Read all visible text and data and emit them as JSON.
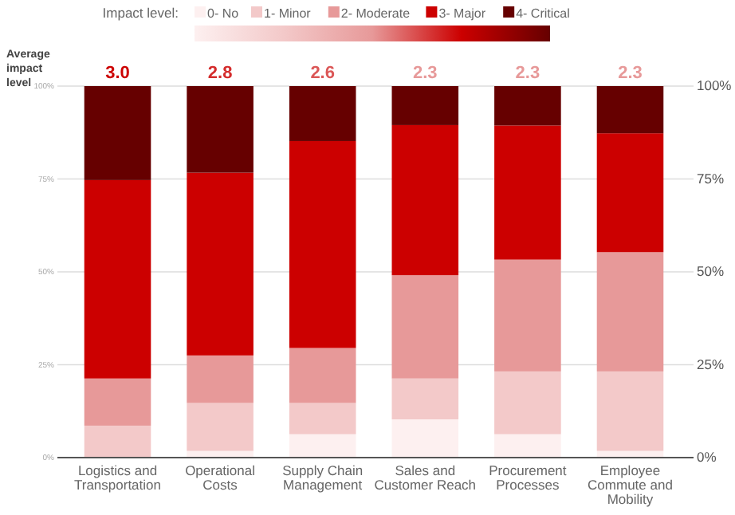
{
  "chart_data": {
    "type": "bar",
    "stacked": true,
    "legend": "top",
    "legend_title": "Impact level:",
    "grid": "y",
    "categories": [
      "Logistics and Transportation",
      "Operational Costs",
      "Supply Chain Management",
      "Sales and Customer Reach",
      "Procurement Processes",
      "Employee Commute and Mobility"
    ],
    "series": [
      {
        "name": "0- No",
        "color": "#fdf0f0",
        "values": [
          0,
          1.8,
          6.3,
          10.3,
          6.3,
          1.8
        ]
      },
      {
        "name": "1- Minor",
        "color": "#f3c9c9",
        "values": [
          8.6,
          12.9,
          8.4,
          11.0,
          16.9,
          21.4
        ]
      },
      {
        "name": "2- Moderate",
        "color": "#e79999",
        "values": [
          12.7,
          12.8,
          14.8,
          27.8,
          30.1,
          32.1
        ]
      },
      {
        "name": "3- Major",
        "color": "#cc0000",
        "values": [
          53.4,
          49.2,
          55.7,
          40.4,
          36.1,
          32.0
        ]
      },
      {
        "name": "4- Critical",
        "color": "#660000",
        "values": [
          25.3,
          23.3,
          14.8,
          10.5,
          10.6,
          12.7
        ]
      }
    ],
    "ylim": [
      0,
      100
    ],
    "yticks": [
      {
        "value": 0,
        "label": "0%"
      },
      {
        "value": 25,
        "label": "25%"
      },
      {
        "value": 50,
        "label": "50%"
      },
      {
        "value": 75,
        "label": "75%"
      },
      {
        "value": 100,
        "label": "100%"
      }
    ],
    "y2lim": [
      0,
      100
    ],
    "y2ticks": [
      {
        "value": 0,
        "label": "0%"
      },
      {
        "value": 25,
        "label": "25%"
      },
      {
        "value": 50,
        "label": "50%"
      },
      {
        "value": 75,
        "label": "75%"
      },
      {
        "value": 100,
        "label": "100%"
      }
    ],
    "annotations": [
      "Average impact level",
      {
        "text": "3.0",
        "x": "Logistics and Transportation",
        "y": 100
      },
      {
        "text": "2.8",
        "x": "Operational Costs",
        "y": 100
      },
      {
        "text": "2.6",
        "x": "Supply Chain Management",
        "y": 100
      },
      {
        "text": "2.3",
        "x": "Sales and Customer Reach",
        "y": 100
      },
      {
        "text": "2.3",
        "x": "Procurement Processes",
        "y": 100
      },
      {
        "text": "2.3",
        "x": "Employee Commute and Mobility",
        "y": 100
      }
    ]
  }
}
